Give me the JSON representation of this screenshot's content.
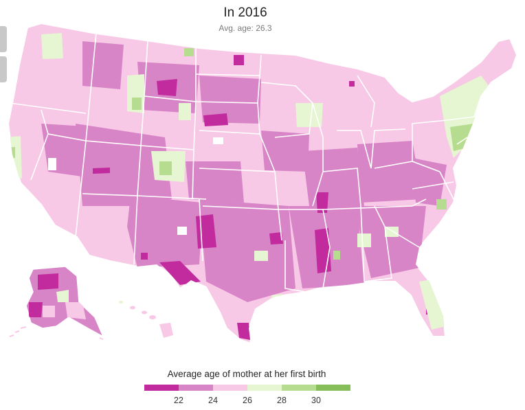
{
  "title": "In 2016",
  "subtitle": "Avg. age: 26.3",
  "legend": {
    "title": "Average age of mother at her first birth",
    "colors": [
      "#c12b9e",
      "#d885c8",
      "#f8c9e6",
      "#e6f5d2",
      "#b6dc8f",
      "#86bf5a"
    ],
    "ticks": [
      "22",
      "24",
      "26",
      "28",
      "30"
    ]
  },
  "map": {
    "region": "Contiguous United States, Alaska and Hawaii by county",
    "background_color": "#f8c9e6",
    "border_color": "#ffffff"
  }
}
